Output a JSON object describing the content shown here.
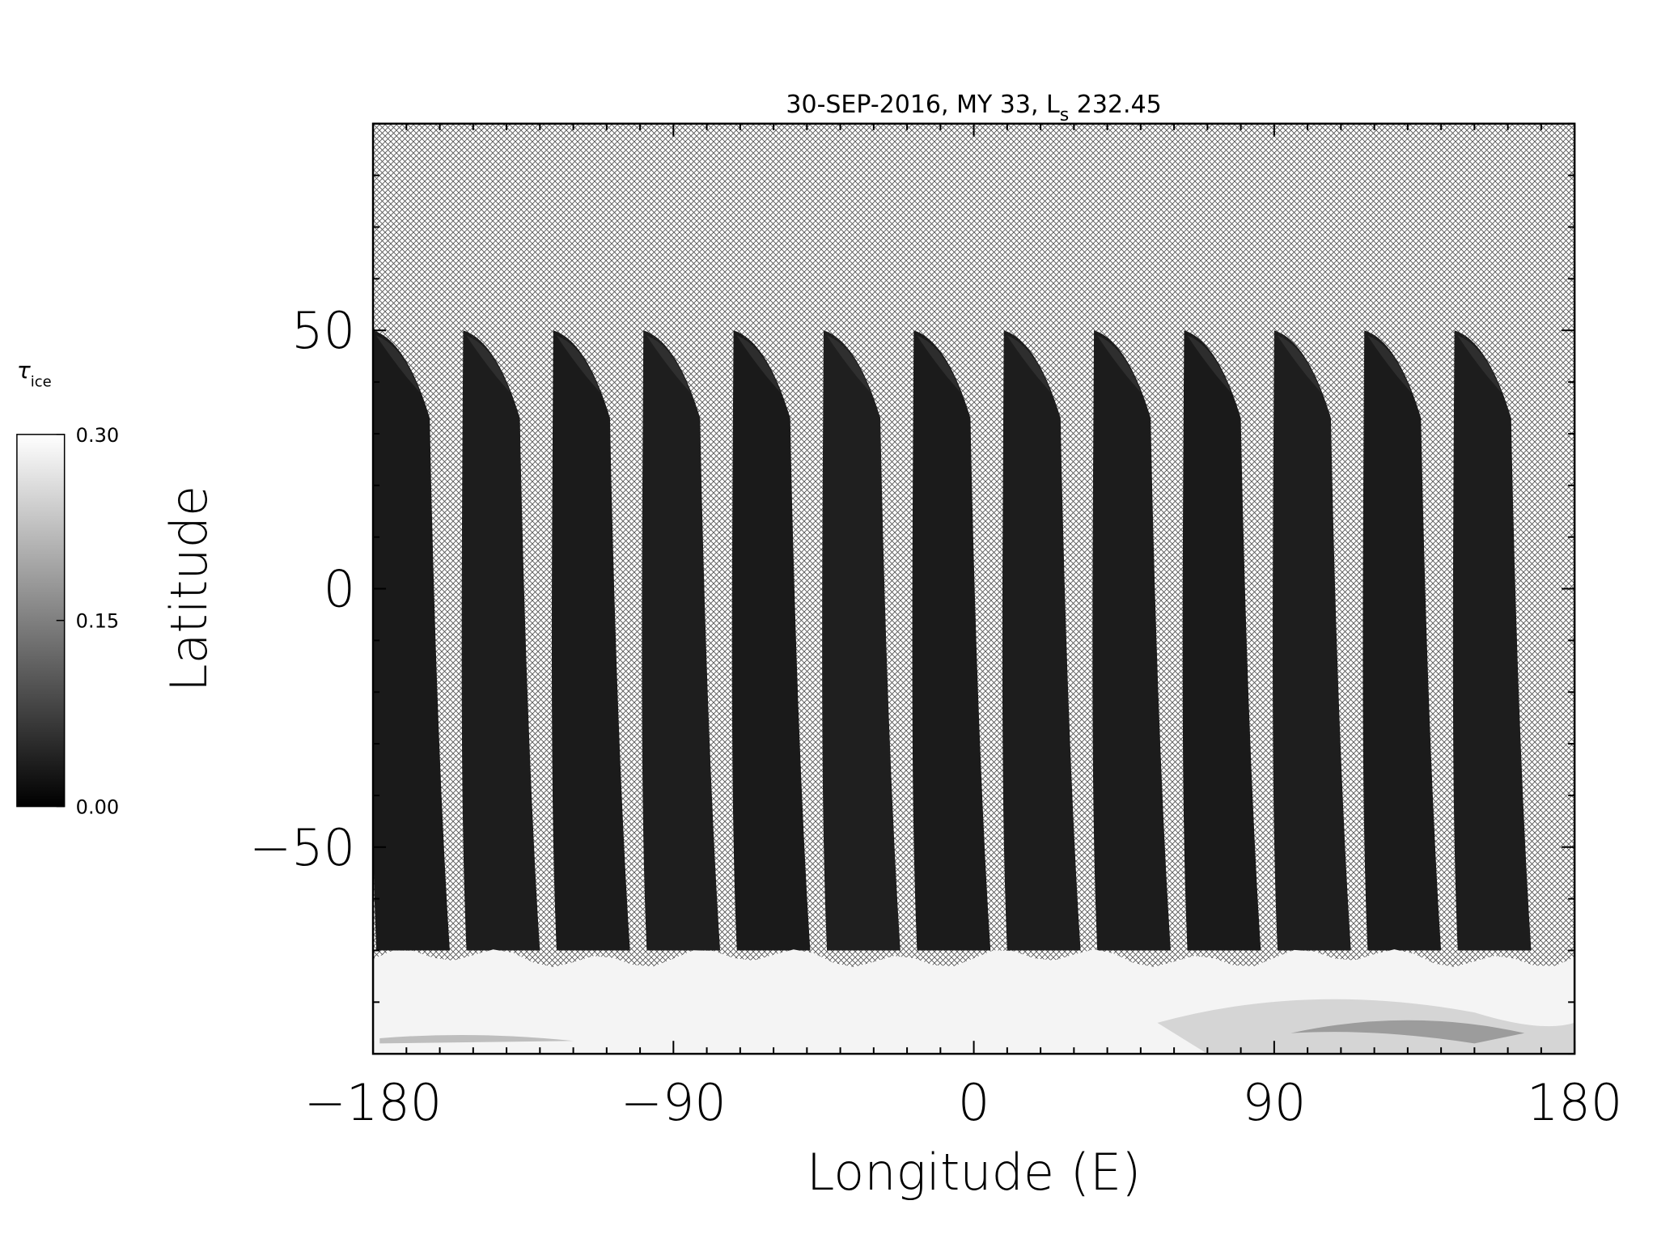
{
  "chart_data": {
    "type": "heatmap",
    "title": "30-SEP-2016, MY 33,  L",
    "title_subscript": "s",
    "title_suffix": " 232.45",
    "xlabel": "Longitude (E)",
    "ylabel": "Latitude",
    "xlim": [
      -180,
      180
    ],
    "ylim": [
      -90,
      90
    ],
    "x_tick_labels": [
      "−180",
      "−90",
      "0",
      "90",
      "180"
    ],
    "x_tick_values": [
      -180,
      -90,
      0,
      90,
      180
    ],
    "y_tick_labels": [
      "−50",
      "0",
      "50"
    ],
    "y_tick_values": [
      -50,
      0,
      50
    ],
    "colorbar": {
      "label": "τ",
      "label_subscript": "ice",
      "min": 0.0,
      "max": 0.3,
      "tick_labels": [
        "0.00",
        "0.15",
        "0.30"
      ],
      "tick_values": [
        0.0,
        0.15,
        0.3
      ],
      "colormap": "grayscale"
    },
    "missing_data_pattern": "crosshatch",
    "swaths": {
      "count": 13,
      "start_lon": [
        -180,
        -153,
        -126,
        -99,
        -72,
        -45,
        -18,
        9,
        36,
        63,
        90,
        117,
        144
      ],
      "width_deg": 17,
      "north_lat": 50,
      "south_lat": -70
    },
    "polar_hood": {
      "lat_range": [
        -90,
        -70
      ],
      "tau_ice": 0.3
    },
    "grid": false
  }
}
